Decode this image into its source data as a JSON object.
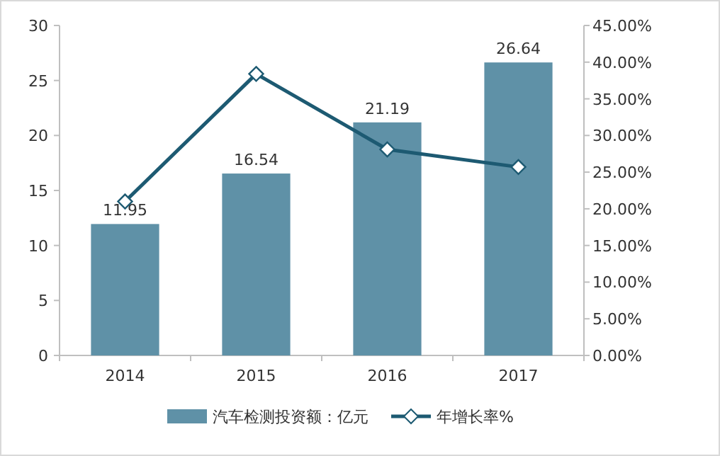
{
  "chart_data": {
    "type": "bar",
    "categories": [
      "2014",
      "2015",
      "2016",
      "2017"
    ],
    "series": [
      {
        "name": "汽车检测投资额：亿元",
        "color": "#5f91a7",
        "values": [
          11.95,
          16.54,
          21.19,
          26.64
        ],
        "value_labels": [
          "11.95",
          "16.54",
          "21.19",
          "26.64"
        ]
      },
      {
        "name": "年增长率%",
        "type": "line",
        "axis": "y2",
        "color": "#1d5a72",
        "marker": "diamond",
        "values": [
          21.0,
          38.4,
          28.1,
          25.7
        ]
      }
    ],
    "ylim": [
      0,
      30
    ],
    "yticks": [
      0,
      5,
      10,
      15,
      20,
      25,
      30
    ],
    "y2lim": [
      0,
      45
    ],
    "y2ticks": [
      {
        "value": 0,
        "label": "0.00%"
      },
      {
        "value": 5,
        "label": "5.00%"
      },
      {
        "value": 10,
        "label": "10.00%"
      },
      {
        "value": 15,
        "label": "15.00%"
      },
      {
        "value": 20,
        "label": "20.00%"
      },
      {
        "value": 25,
        "label": "25.00%"
      },
      {
        "value": 30,
        "label": "30.00%"
      },
      {
        "value": 35,
        "label": "35.00%"
      },
      {
        "value": 40,
        "label": "40.00%"
      },
      {
        "value": 45,
        "label": "45.00%"
      }
    ],
    "legend": "bottom"
  }
}
